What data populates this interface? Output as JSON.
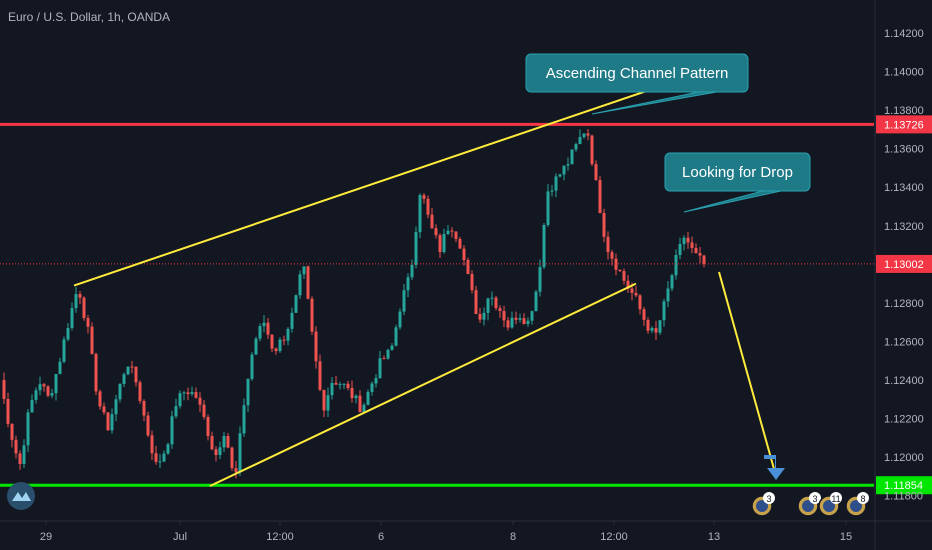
{
  "chart_data": {
    "type": "candlestick",
    "title": "Euro / U.S. Dollar, 1h, OANDA",
    "y_ticks": [
      "1.14200",
      "1.14000",
      "1.13800",
      "1.13600",
      "1.13400",
      "1.13200",
      "1.12800",
      "1.12600",
      "1.12400",
      "1.12200",
      "1.12000",
      "1.11800"
    ],
    "x_ticks": [
      "29",
      "Jul",
      "12:00",
      "6",
      "8",
      "12:00",
      "13",
      "15"
    ],
    "ylim": [
      1.1175,
      1.1432
    ],
    "grid": false,
    "resistance": {
      "value": "1.13726",
      "color": "#f23645"
    },
    "support": {
      "value": "1.11854",
      "color": "#00e600"
    },
    "current_price": {
      "value": "1.13002",
      "color": "#f23645"
    },
    "channel": {
      "upper": [
        [
          "29",
          1.1289
        ],
        [
          "12:00",
          1.1385
        ]
      ],
      "lower": [
        [
          "Jul",
          1.1185
        ],
        [
          "12:00",
          1.129
        ]
      ],
      "color": "#ffeb3b"
    },
    "close_path": [
      1.124,
      1.1215,
      1.1195,
      1.1225,
      1.124,
      1.123,
      1.1248,
      1.127,
      1.1289,
      1.1265,
      1.123,
      1.1215,
      1.1232,
      1.125,
      1.1238,
      1.1215,
      1.1195,
      1.1205,
      1.1228,
      1.1235,
      1.1232,
      1.1218,
      1.12,
      1.1215,
      1.1185,
      1.123,
      1.126,
      1.127,
      1.1255,
      1.1262,
      1.1275,
      1.13,
      1.126,
      1.1225,
      1.124,
      1.1238,
      1.1232,
      1.1225,
      1.1238,
      1.125,
      1.1255,
      1.128,
      1.1295,
      1.134,
      1.132,
      1.1308,
      1.1322,
      1.1312,
      1.129,
      1.127,
      1.1285,
      1.1278,
      1.1268,
      1.1275,
      1.127,
      1.129,
      1.1338,
      1.1345,
      1.1352,
      1.1362,
      1.1372,
      1.134,
      1.131,
      1.13,
      1.129,
      1.1282,
      1.127,
      1.1262,
      1.128,
      1.13,
      1.1315,
      1.1305,
      1.13
    ],
    "callouts": [
      "Ascending Channel Pattern",
      "Looking for Drop"
    ],
    "event_badges": [
      "3",
      "3",
      "11",
      "8"
    ]
  }
}
